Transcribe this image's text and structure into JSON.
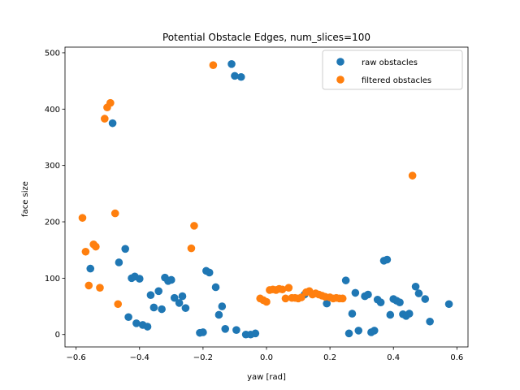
{
  "chart_data": {
    "type": "scatter",
    "title": "Potential Obstacle Edges, num_slices=100",
    "xlabel": "yaw [rad]",
    "ylabel": "face size",
    "xlim": [
      -0.635,
      0.635
    ],
    "ylim": [
      -22,
      510
    ],
    "xticks": [
      -0.6,
      -0.4,
      -0.2,
      0.0,
      0.2,
      0.4,
      0.6
    ],
    "xtick_labels": [
      "−0.6",
      "−0.4",
      "−0.2",
      "0.0",
      "0.2",
      "0.4",
      "0.6"
    ],
    "yticks": [
      0,
      100,
      200,
      300,
      400,
      500
    ],
    "ytick_labels": [
      "0",
      "100",
      "200",
      "300",
      "400",
      "500"
    ],
    "grid": false,
    "legend_position": "top-right",
    "series": [
      {
        "name": "raw obstacles",
        "color": "#1f77b4",
        "points": [
          [
            -0.485,
            375
          ],
          [
            -0.555,
            117
          ],
          [
            -0.465,
            128
          ],
          [
            -0.445,
            152
          ],
          [
            -0.435,
            31
          ],
          [
            -0.425,
            100
          ],
          [
            -0.415,
            103
          ],
          [
            -0.41,
            20
          ],
          [
            -0.4,
            99
          ],
          [
            -0.39,
            17
          ],
          [
            -0.375,
            14
          ],
          [
            -0.365,
            70
          ],
          [
            -0.355,
            48
          ],
          [
            -0.34,
            77
          ],
          [
            -0.33,
            45
          ],
          [
            -0.32,
            101
          ],
          [
            -0.31,
            95
          ],
          [
            -0.3,
            97
          ],
          [
            -0.29,
            65
          ],
          [
            -0.275,
            56
          ],
          [
            -0.265,
            68
          ],
          [
            -0.255,
            47
          ],
          [
            -0.21,
            3
          ],
          [
            -0.2,
            4
          ],
          [
            -0.19,
            113
          ],
          [
            -0.18,
            110
          ],
          [
            -0.16,
            84
          ],
          [
            -0.15,
            35
          ],
          [
            -0.14,
            50
          ],
          [
            -0.13,
            10
          ],
          [
            -0.11,
            480
          ],
          [
            -0.1,
            459
          ],
          [
            -0.095,
            8
          ],
          [
            -0.08,
            457
          ],
          [
            -0.065,
            0
          ],
          [
            -0.05,
            0
          ],
          [
            -0.035,
            2
          ],
          [
            0.12,
            71
          ],
          [
            0.19,
            55
          ],
          [
            0.25,
            96
          ],
          [
            0.26,
            2
          ],
          [
            0.27,
            37
          ],
          [
            0.28,
            74
          ],
          [
            0.29,
            7
          ],
          [
            0.31,
            68
          ],
          [
            0.32,
            71
          ],
          [
            0.33,
            4
          ],
          [
            0.34,
            7
          ],
          [
            0.35,
            62
          ],
          [
            0.36,
            57
          ],
          [
            0.37,
            131
          ],
          [
            0.38,
            133
          ],
          [
            0.39,
            35
          ],
          [
            0.4,
            63
          ],
          [
            0.41,
            60
          ],
          [
            0.42,
            57
          ],
          [
            0.43,
            36
          ],
          [
            0.44,
            33
          ],
          [
            0.45,
            37
          ],
          [
            0.47,
            85
          ],
          [
            0.48,
            73
          ],
          [
            0.5,
            63
          ],
          [
            0.515,
            23
          ],
          [
            0.575,
            54
          ]
        ]
      },
      {
        "name": "filtered obstacles",
        "color": "#ff7f0e",
        "points": [
          [
            -0.58,
            207
          ],
          [
            -0.57,
            147
          ],
          [
            -0.56,
            87
          ],
          [
            -0.545,
            160
          ],
          [
            -0.538,
            156
          ],
          [
            -0.525,
            83
          ],
          [
            -0.51,
            383
          ],
          [
            -0.502,
            403
          ],
          [
            -0.492,
            411
          ],
          [
            -0.477,
            215
          ],
          [
            -0.468,
            54
          ],
          [
            -0.237,
            153
          ],
          [
            -0.228,
            193
          ],
          [
            -0.168,
            478
          ],
          [
            -0.02,
            64
          ],
          [
            -0.01,
            61
          ],
          [
            0.0,
            58
          ],
          [
            0.01,
            79
          ],
          [
            0.02,
            80
          ],
          [
            0.03,
            79
          ],
          [
            0.04,
            81
          ],
          [
            0.05,
            80
          ],
          [
            0.06,
            64
          ],
          [
            0.07,
            83
          ],
          [
            0.08,
            65
          ],
          [
            0.09,
            65
          ],
          [
            0.1,
            64
          ],
          [
            0.11,
            66
          ],
          [
            0.125,
            75
          ],
          [
            0.135,
            77
          ],
          [
            0.145,
            71
          ],
          [
            0.155,
            73
          ],
          [
            0.165,
            71
          ],
          [
            0.175,
            69
          ],
          [
            0.185,
            67
          ],
          [
            0.2,
            66
          ],
          [
            0.21,
            64
          ],
          [
            0.22,
            65
          ],
          [
            0.23,
            64
          ],
          [
            0.24,
            64
          ],
          [
            0.46,
            282
          ]
        ]
      }
    ]
  }
}
